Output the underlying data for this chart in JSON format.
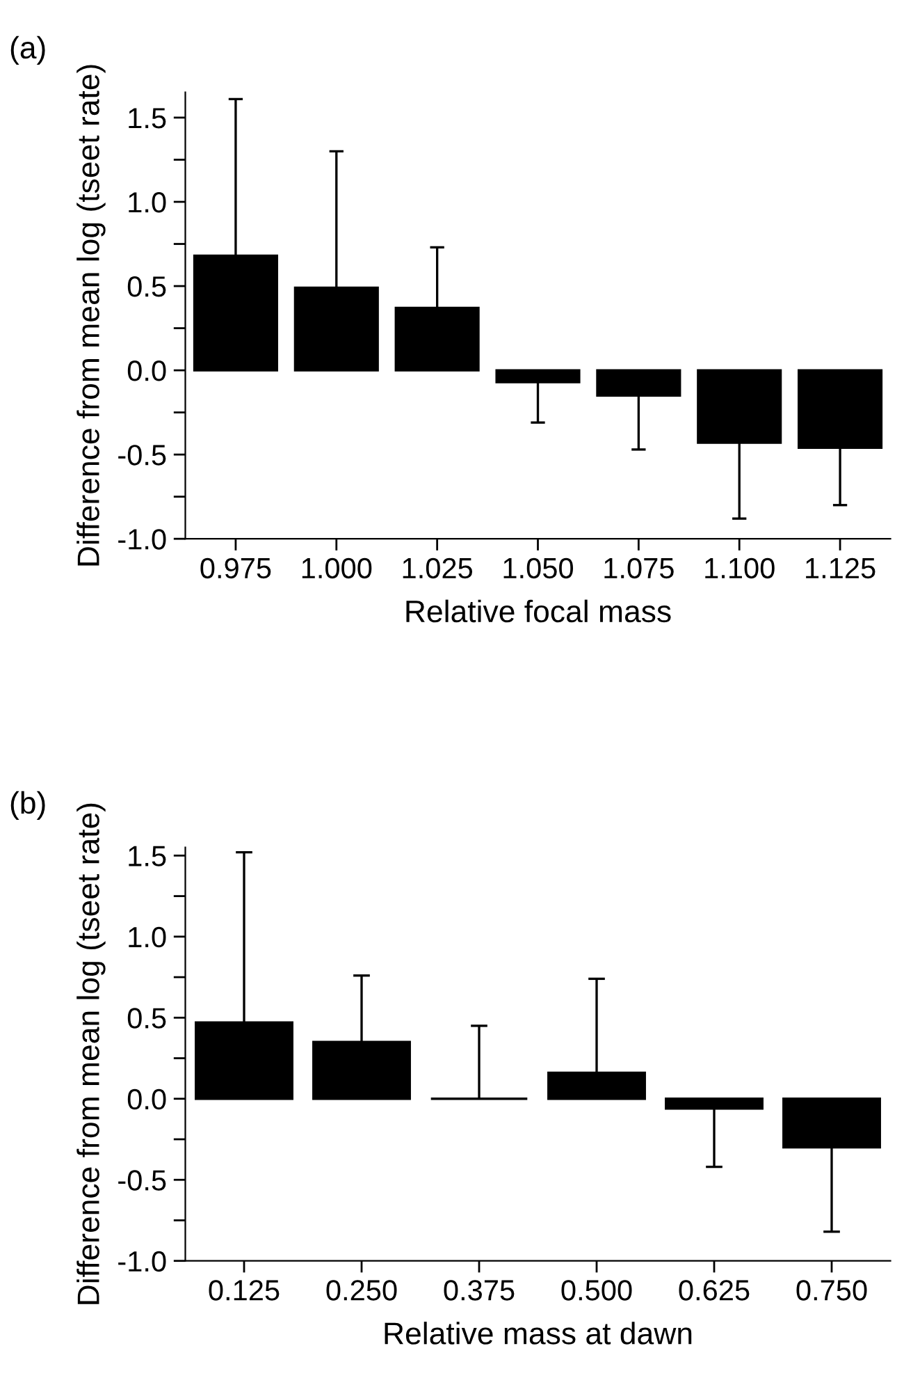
{
  "chart_data": [
    {
      "type": "bar",
      "title": "(a)",
      "xlabel": "Relative focal mass",
      "ylabel": "Difference from mean log (tseet rate)",
      "color": "#000000",
      "categories": [
        "0.975",
        "1.000",
        "1.025",
        "1.050",
        "1.075",
        "1.100",
        "1.125"
      ],
      "values": [
        0.68,
        0.49,
        0.37,
        -0.07,
        -0.15,
        -0.43,
        -0.46
      ],
      "errors": [
        [
          0.68,
          1.61
        ],
        [
          0.49,
          1.3
        ],
        [
          0.37,
          0.73
        ],
        [
          -0.31,
          -0.07
        ],
        [
          -0.47,
          -0.15
        ],
        [
          -0.88,
          -0.43
        ],
        [
          -0.8,
          -0.46
        ]
      ],
      "ylim": [
        -1.0,
        1.65
      ],
      "yticks": [
        {
          "value": -1.0,
          "label": "-1.0"
        },
        {
          "value": -0.75,
          "label": null
        },
        {
          "value": -0.5,
          "label": "-0.5"
        },
        {
          "value": -0.25,
          "label": null
        },
        {
          "value": 0.0,
          "label": "0.0"
        },
        {
          "value": 0.25,
          "label": null
        },
        {
          "value": 0.5,
          "label": "0.5"
        },
        {
          "value": 0.75,
          "label": null
        },
        {
          "value": 1.0,
          "label": "1.0"
        },
        {
          "value": 1.25,
          "label": null
        },
        {
          "value": 1.5,
          "label": "1.5"
        }
      ]
    },
    {
      "type": "bar",
      "title": "(b)",
      "xlabel": "Relative mass at dawn",
      "ylabel": "Difference from mean log (tseet rate)",
      "color": "#000000",
      "categories": [
        "0.125",
        "0.250",
        "0.375",
        "0.500",
        "0.625",
        "0.750"
      ],
      "values": [
        0.47,
        0.35,
        0.0,
        0.16,
        -0.06,
        -0.3
      ],
      "errors": [
        [
          0.47,
          1.52
        ],
        [
          0.35,
          0.76
        ],
        [
          0.0,
          0.45
        ],
        [
          0.16,
          0.74
        ],
        [
          -0.42,
          -0.06
        ],
        [
          -0.82,
          -0.3
        ]
      ],
      "ylim": [
        -1.0,
        1.55
      ],
      "yticks": [
        {
          "value": -1.0,
          "label": "-1.0"
        },
        {
          "value": -0.75,
          "label": null
        },
        {
          "value": -0.5,
          "label": "-0.5"
        },
        {
          "value": -0.25,
          "label": null
        },
        {
          "value": 0.0,
          "label": "0.0"
        },
        {
          "value": 0.25,
          "label": null
        },
        {
          "value": 0.5,
          "label": "0.5"
        },
        {
          "value": 0.75,
          "label": null
        },
        {
          "value": 1.0,
          "label": "1.0"
        },
        {
          "value": 1.25,
          "label": null
        },
        {
          "value": 1.5,
          "label": "1.5"
        }
      ]
    }
  ]
}
